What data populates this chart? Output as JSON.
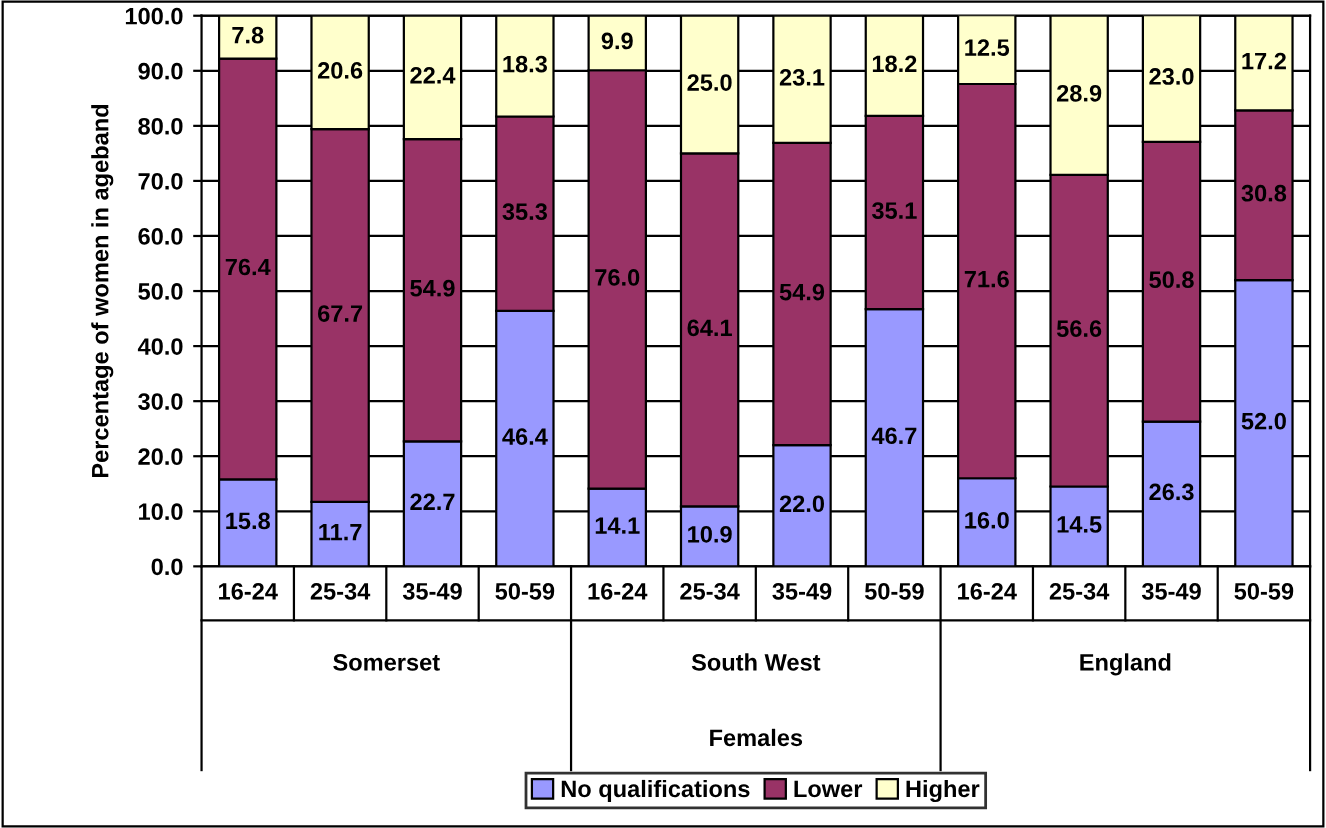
{
  "chart_data": {
    "type": "bar",
    "stacked": true,
    "ylabel": "Percentage of women in ageband",
    "categories": [
      "16-24",
      "25-34",
      "35-49",
      "50-59",
      "16-24",
      "25-34",
      "35-49",
      "50-59",
      "16-24",
      "25-34",
      "35-49",
      "50-59"
    ],
    "annotations": [
      "Somerset",
      "South West",
      "England",
      "Females"
    ],
    "series": [
      {
        "name": "No qualifications",
        "color": "#9999ff",
        "values": [
          15.8,
          11.7,
          22.7,
          46.4,
          14.1,
          10.9,
          22.0,
          46.7,
          16.0,
          14.5,
          26.3,
          52.0
        ],
        "value_labels": [
          "15.8",
          "11.7",
          "22.7",
          "46.4",
          "14.1",
          "10.9",
          "22.0",
          "46.7",
          "16.0",
          "14.5",
          "26.3",
          "52.0"
        ]
      },
      {
        "name": "Lower",
        "color": "#993366",
        "values": [
          76.4,
          67.7,
          54.9,
          35.3,
          76.0,
          64.1,
          54.9,
          35.1,
          71.6,
          56.6,
          50.8,
          30.8
        ],
        "value_labels": [
          "76.4",
          "67.7",
          "54.9",
          "35.3",
          "76.0",
          "64.1",
          "54.9",
          "35.1",
          "71.6",
          "56.6",
          "50.8",
          "30.8"
        ]
      },
      {
        "name": "Higher",
        "color": "#ffffcc",
        "values": [
          7.8,
          20.6,
          22.4,
          18.3,
          9.9,
          25.0,
          23.1,
          18.2,
          12.5,
          28.9,
          23.0,
          17.2
        ],
        "value_labels": [
          "7.8",
          "20.6",
          "22.4",
          "18.3",
          "9.9",
          "25.0",
          "23.1",
          "18.2",
          "12.5",
          "28.9",
          "23.0",
          "17.2"
        ]
      }
    ],
    "ylim": [
      0,
      100
    ],
    "yticks": [
      {
        "value": 0,
        "label": "0.0"
      },
      {
        "value": 10,
        "label": "10.0"
      },
      {
        "value": 20,
        "label": "20.0"
      },
      {
        "value": 30,
        "label": "30.0"
      },
      {
        "value": 40,
        "label": "40.0"
      },
      {
        "value": 50,
        "label": "50.0"
      },
      {
        "value": 60,
        "label": "60.0"
      },
      {
        "value": 70,
        "label": "70.0"
      },
      {
        "value": 80,
        "label": "80.0"
      },
      {
        "value": 90,
        "label": "90.0"
      },
      {
        "value": 100,
        "label": "100.0"
      }
    ],
    "grid": "y",
    "legend": "bottom"
  }
}
